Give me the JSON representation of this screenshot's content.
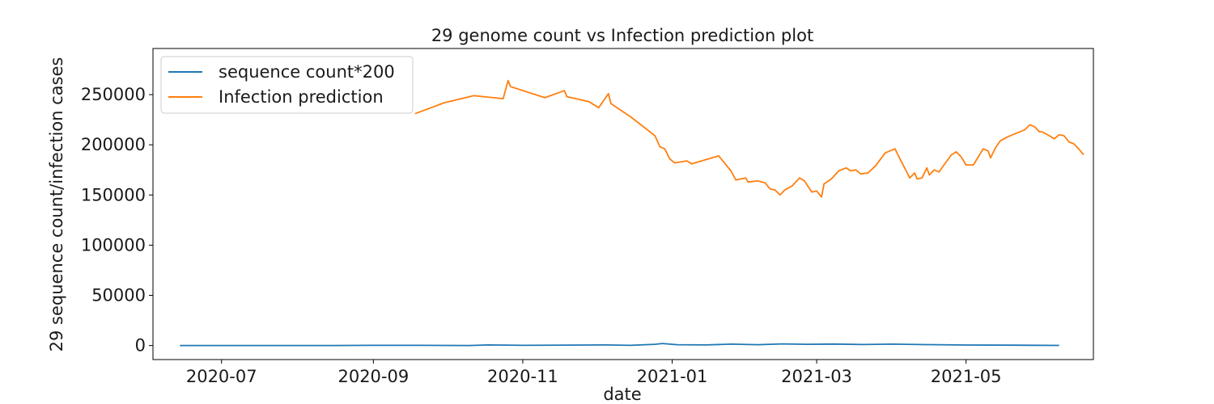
{
  "chart_data": {
    "type": "line",
    "title": "29 genome count vs Infection prediction plot",
    "xlabel": "date",
    "ylabel": "29 sequence count/infection cases",
    "xlim": [
      "2020-06-03",
      "2021-06-22"
    ],
    "ylim": [
      -14000,
      296000
    ],
    "x_ticks": [
      "2020-07-01",
      "2020-09-01",
      "2020-11-01",
      "2021-01-01",
      "2021-03-01",
      "2021-05-01"
    ],
    "x_tick_labels": [
      "2020-07",
      "2020-09",
      "2020-11",
      "2021-01",
      "2021-03",
      "2021-05"
    ],
    "y_ticks": [
      0,
      50000,
      100000,
      150000,
      200000,
      250000
    ],
    "y_tick_labels": [
      "0",
      "50000",
      "100000",
      "150000",
      "200000",
      "250000"
    ],
    "grid": false,
    "legend_position": "top-left",
    "series": [
      {
        "name": "sequence count*200",
        "color": "#1f77b4",
        "points": [
          [
            "2020-06-14",
            0
          ],
          [
            "2020-07-15",
            0
          ],
          [
            "2020-08-15",
            0
          ],
          [
            "2020-08-31",
            200
          ],
          [
            "2020-09-20",
            200
          ],
          [
            "2020-10-10",
            0
          ],
          [
            "2020-10-18",
            600
          ],
          [
            "2020-11-01",
            200
          ],
          [
            "2020-11-20",
            400
          ],
          [
            "2020-12-05",
            600
          ],
          [
            "2020-12-15",
            200
          ],
          [
            "2020-12-25",
            1200
          ],
          [
            "2020-12-28",
            2000
          ],
          [
            "2021-01-03",
            800
          ],
          [
            "2021-01-15",
            600
          ],
          [
            "2021-01-25",
            1400
          ],
          [
            "2021-02-05",
            800
          ],
          [
            "2021-02-15",
            1600
          ],
          [
            "2021-02-25",
            1200
          ],
          [
            "2021-03-08",
            1500
          ],
          [
            "2021-03-20",
            1000
          ],
          [
            "2021-04-01",
            1400
          ],
          [
            "2021-04-15",
            900
          ],
          [
            "2021-05-01",
            500
          ],
          [
            "2021-05-20",
            300
          ],
          [
            "2021-06-08",
            100
          ]
        ]
      },
      {
        "name": "Infection prediction",
        "color": "#ff7f0e",
        "points": [
          [
            "2020-09-18",
            231000
          ],
          [
            "2020-09-30",
            242000
          ],
          [
            "2020-10-12",
            249000
          ],
          [
            "2020-10-24",
            246000
          ],
          [
            "2020-10-26",
            264000
          ],
          [
            "2020-10-27",
            258000
          ],
          [
            "2020-11-10",
            247000
          ],
          [
            "2020-11-18",
            254000
          ],
          [
            "2020-11-19",
            248000
          ],
          [
            "2020-11-28",
            243000
          ],
          [
            "2020-12-02",
            237000
          ],
          [
            "2020-12-06",
            251000
          ],
          [
            "2020-12-07",
            241000
          ],
          [
            "2020-12-15",
            228000
          ],
          [
            "2020-12-25",
            209000
          ],
          [
            "2020-12-27",
            198000
          ],
          [
            "2020-12-29",
            196000
          ],
          [
            "2020-12-31",
            186000
          ],
          [
            "2021-01-02",
            182000
          ],
          [
            "2021-01-07",
            184000
          ],
          [
            "2021-01-09",
            181000
          ],
          [
            "2021-01-20",
            189000
          ],
          [
            "2021-01-25",
            174000
          ],
          [
            "2021-01-27",
            165000
          ],
          [
            "2021-01-31",
            167000
          ],
          [
            "2021-02-01",
            163000
          ],
          [
            "2021-02-05",
            164000
          ],
          [
            "2021-02-08",
            162000
          ],
          [
            "2021-02-10",
            156000
          ],
          [
            "2021-02-12",
            155000
          ],
          [
            "2021-02-14",
            150000
          ],
          [
            "2021-02-16",
            155000
          ],
          [
            "2021-02-19",
            159000
          ],
          [
            "2021-02-22",
            167000
          ],
          [
            "2021-02-24",
            164000
          ],
          [
            "2021-02-27",
            153000
          ],
          [
            "2021-03-01",
            154000
          ],
          [
            "2021-03-03",
            148000
          ],
          [
            "2021-03-04",
            161000
          ],
          [
            "2021-03-07",
            166000
          ],
          [
            "2021-03-10",
            174000
          ],
          [
            "2021-03-13",
            177000
          ],
          [
            "2021-03-15",
            174000
          ],
          [
            "2021-03-17",
            175000
          ],
          [
            "2021-03-19",
            171000
          ],
          [
            "2021-03-22",
            172000
          ],
          [
            "2021-03-25",
            179000
          ],
          [
            "2021-03-29",
            192000
          ],
          [
            "2021-04-02",
            196000
          ],
          [
            "2021-04-04",
            186000
          ],
          [
            "2021-04-07",
            172000
          ],
          [
            "2021-04-08",
            167000
          ],
          [
            "2021-04-10",
            172000
          ],
          [
            "2021-04-11",
            166000
          ],
          [
            "2021-04-13",
            167000
          ],
          [
            "2021-04-15",
            177000
          ],
          [
            "2021-04-16",
            170000
          ],
          [
            "2021-04-18",
            175000
          ],
          [
            "2021-04-20",
            173000
          ],
          [
            "2021-04-22",
            180000
          ],
          [
            "2021-04-25",
            190000
          ],
          [
            "2021-04-27",
            193000
          ],
          [
            "2021-04-29",
            188000
          ],
          [
            "2021-05-01",
            180000
          ],
          [
            "2021-05-04",
            180000
          ],
          [
            "2021-05-06",
            188000
          ],
          [
            "2021-05-08",
            196000
          ],
          [
            "2021-05-10",
            194000
          ],
          [
            "2021-05-11",
            187000
          ],
          [
            "2021-05-13",
            197000
          ],
          [
            "2021-05-15",
            204000
          ],
          [
            "2021-05-18",
            208000
          ],
          [
            "2021-05-22",
            212000
          ],
          [
            "2021-05-25",
            215000
          ],
          [
            "2021-05-27",
            220000
          ],
          [
            "2021-05-29",
            218000
          ],
          [
            "2021-05-31",
            213000
          ],
          [
            "2021-06-01",
            213000
          ],
          [
            "2021-06-04",
            209000
          ],
          [
            "2021-06-06",
            206000
          ],
          [
            "2021-06-08",
            210000
          ],
          [
            "2021-06-10",
            209000
          ],
          [
            "2021-06-12",
            203000
          ],
          [
            "2021-06-14",
            201000
          ],
          [
            "2021-06-16",
            196000
          ],
          [
            "2021-06-18",
            190000
          ]
        ]
      }
    ]
  }
}
